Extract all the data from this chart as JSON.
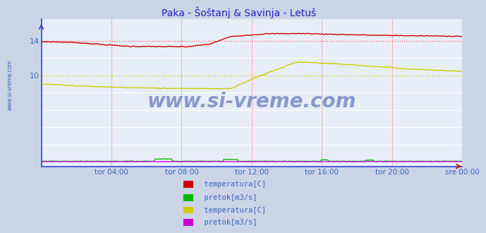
{
  "title": "Paka - Šoštanj & Savinja - Letuš",
  "title_color": "#2222bb",
  "bg_color": "#ccd4e8",
  "plot_bg_color": "#e8eef8",
  "border_color": "#3344cc",
  "grid_h_color": "#ffffff",
  "grid_v_color": "#ffaaaa",
  "tick_color": "#3366bb",
  "watermark": "www.si-vreme.com",
  "watermark_color": "#8899cc",
  "xtick_labels": [
    "tor 04:00",
    "tor 08:00",
    "tor 12:00",
    "tor 16:00",
    "tor 20:00",
    "sre 00:00"
  ],
  "ytick_labels": [
    "14",
    "10"
  ],
  "ytick_values": [
    14,
    10
  ],
  "ylim": [
    -0.5,
    16.5
  ],
  "xlim": [
    0,
    288
  ],
  "xtick_positions": [
    48,
    96,
    144,
    192,
    240,
    288
  ],
  "legend_items": [
    {
      "label": "  temperatura[C]",
      "color": "#cc0000"
    },
    {
      "label": "  pretok[m3/s]",
      "color": "#00bb00"
    },
    {
      "label": "  temperatura[C]",
      "color": "#cccc00"
    },
    {
      "label": "  pretok[m3/s]",
      "color": "#cc00cc"
    }
  ],
  "dotted_lines": [
    {
      "y": 14.0,
      "color": "#ff4444",
      "style": "dotted",
      "lw": 0.9
    },
    {
      "y": 10.0,
      "color": "#bbbb00",
      "style": "dotted",
      "lw": 0.9
    }
  ],
  "series": {
    "paka_temp": {
      "color": "#cc0000",
      "lw": 1.0
    },
    "paka_pretok": {
      "color": "#00bb00",
      "lw": 1.0
    },
    "savinja_temp": {
      "color": "#cccc00",
      "lw": 1.0
    },
    "savinja_pretok": {
      "color": "#cc00cc",
      "lw": 1.0
    }
  }
}
